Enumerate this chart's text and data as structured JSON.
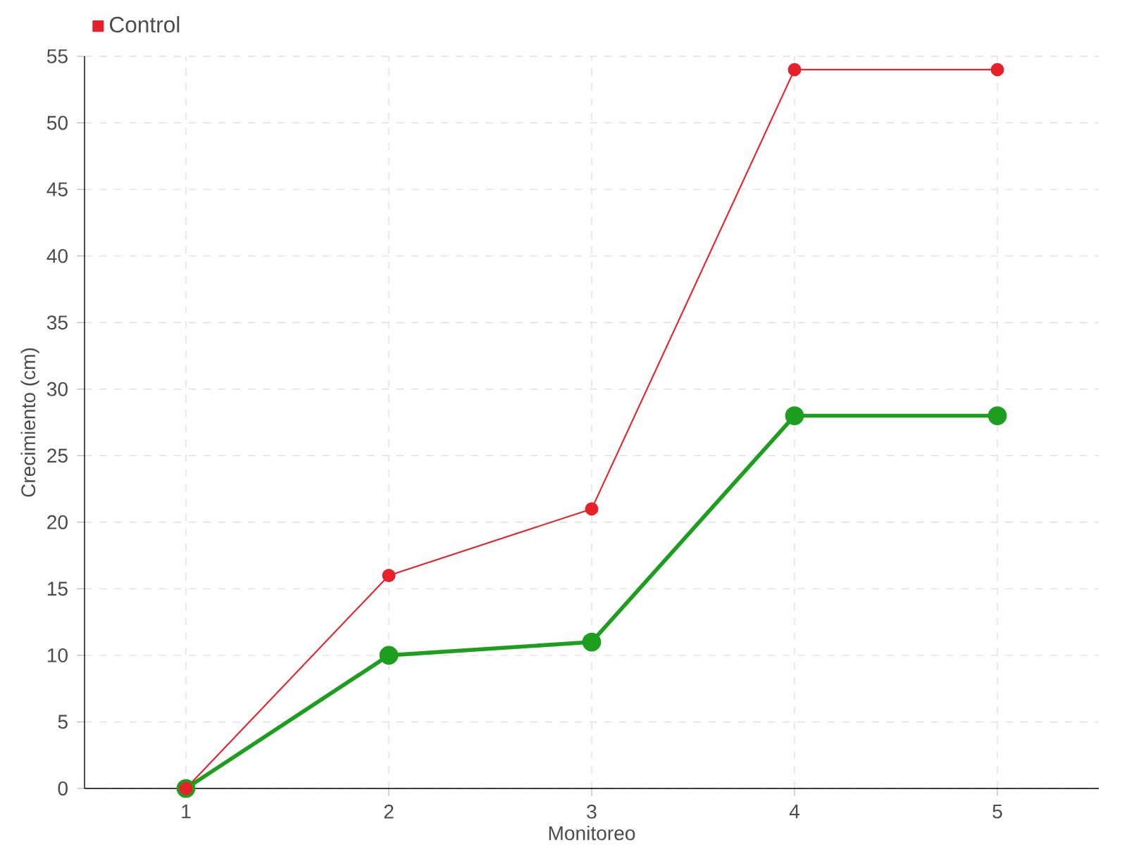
{
  "chart_data": {
    "type": "line",
    "xlabel": "Monitoreo",
    "ylabel": "Crecimiento (cm)",
    "x": [
      1,
      2,
      3,
      4,
      5
    ],
    "series": [
      {
        "color": "#1e9e1e",
        "values": [
          0,
          10,
          11,
          28,
          28
        ]
      },
      {
        "name": "Control",
        "color": "#e8202a",
        "values": [
          0,
          16,
          21,
          54,
          54
        ]
      }
    ],
    "xlim": [
      0.5,
      5.5
    ],
    "xticks": [
      1,
      2,
      3,
      4,
      5
    ],
    "ylim": [
      0,
      55
    ],
    "yticks": [
      0,
      5,
      10,
      15,
      20,
      25,
      30,
      35,
      40,
      45,
      50,
      55
    ],
    "grid": true,
    "legend": "top left",
    "marker": "circle",
    "line_style": "solid"
  }
}
